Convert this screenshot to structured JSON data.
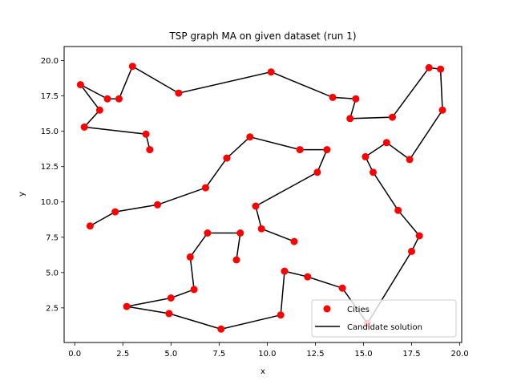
{
  "chart_data": {
    "type": "line",
    "title": "TSP graph MA on given dataset (run 1)",
    "xlabel": "x",
    "ylabel": "y",
    "xlim": [
      -0.55,
      20.1
    ],
    "ylim": [
      0.05,
      21.0
    ],
    "xticks": [
      0.0,
      2.5,
      5.0,
      7.5,
      10.0,
      12.5,
      15.0,
      17.5,
      20.0
    ],
    "yticks": [
      2.5,
      5.0,
      7.5,
      10.0,
      12.5,
      15.0,
      17.5,
      20.0
    ],
    "xtick_labels": [
      "0.0",
      "2.5",
      "5.0",
      "7.5",
      "10.0",
      "12.5",
      "15.0",
      "17.5",
      "20.0"
    ],
    "ytick_labels": [
      "2.5",
      "5.0",
      "7.5",
      "10.0",
      "12.5",
      "15.0",
      "17.5",
      "20.0"
    ],
    "grid": false,
    "legend_position": "lower-right",
    "series": [
      {
        "name": "Cities",
        "kind": "scatter",
        "color": "#ff0000",
        "points": [
          [
            15.2,
            1.4
          ],
          [
            17.5,
            6.5
          ],
          [
            17.9,
            7.6
          ],
          [
            16.8,
            9.4
          ],
          [
            15.5,
            12.1
          ],
          [
            15.1,
            13.2
          ],
          [
            16.2,
            14.2
          ],
          [
            17.4,
            13.0
          ],
          [
            19.1,
            16.5
          ],
          [
            19.0,
            19.4
          ],
          [
            18.4,
            19.5
          ],
          [
            16.5,
            16.0
          ],
          [
            14.3,
            15.9
          ],
          [
            14.6,
            17.3
          ],
          [
            13.4,
            17.4
          ],
          [
            10.2,
            19.2
          ],
          [
            5.4,
            17.7
          ],
          [
            3.0,
            19.6
          ],
          [
            2.3,
            17.3
          ],
          [
            1.7,
            17.3
          ],
          [
            0.3,
            18.3
          ],
          [
            1.3,
            16.5
          ],
          [
            0.5,
            15.3
          ],
          [
            3.7,
            14.8
          ],
          [
            3.9,
            13.7
          ],
          [
            7.9,
            13.1
          ],
          [
            9.1,
            14.6
          ],
          [
            11.7,
            13.7
          ],
          [
            13.1,
            13.7
          ],
          [
            12.6,
            12.1
          ],
          [
            9.4,
            9.7
          ],
          [
            9.7,
            8.1
          ],
          [
            11.4,
            7.2
          ],
          [
            8.6,
            7.8
          ],
          [
            6.9,
            7.8
          ],
          [
            6.0,
            6.1
          ],
          [
            6.2,
            3.8
          ],
          [
            5.0,
            3.2
          ],
          [
            2.7,
            2.6
          ],
          [
            4.9,
            2.1
          ],
          [
            7.6,
            1.0
          ],
          [
            10.7,
            2.0
          ],
          [
            10.9,
            5.1
          ],
          [
            12.1,
            4.7
          ],
          [
            13.9,
            3.9
          ],
          [
            8.4,
            5.9
          ],
          [
            0.8,
            8.3
          ],
          [
            2.1,
            9.3
          ],
          [
            4.3,
            9.8
          ],
          [
            6.8,
            11.0
          ]
        ]
      },
      {
        "name": "Candidate solution",
        "kind": "line",
        "color": "#000000",
        "points": [
          [
            15.2,
            1.4
          ],
          [
            17.5,
            6.5
          ],
          [
            17.9,
            7.6
          ],
          [
            16.8,
            9.4
          ],
          [
            15.5,
            12.1
          ],
          [
            15.1,
            13.2
          ],
          [
            16.2,
            14.2
          ],
          [
            17.4,
            13.0
          ],
          [
            19.1,
            16.5
          ],
          [
            19.0,
            19.4
          ],
          [
            18.4,
            19.5
          ],
          [
            16.5,
            16.0
          ],
          [
            14.3,
            15.9
          ],
          [
            14.6,
            17.3
          ],
          [
            13.4,
            17.4
          ],
          [
            10.2,
            19.2
          ],
          [
            5.4,
            17.7
          ],
          [
            3.0,
            19.6
          ],
          [
            2.3,
            17.3
          ],
          [
            1.7,
            17.3
          ],
          [
            0.3,
            18.3
          ],
          [
            1.3,
            16.5
          ],
          [
            0.5,
            15.3
          ],
          [
            3.7,
            14.8
          ],
          [
            3.9,
            13.7
          ]
        ]
      },
      {
        "name": "",
        "kind": "line",
        "color": "#000000",
        "points": [
          [
            0.8,
            8.3
          ],
          [
            2.1,
            9.3
          ],
          [
            4.3,
            9.8
          ],
          [
            6.8,
            11.0
          ],
          [
            7.9,
            13.1
          ],
          [
            9.1,
            14.6
          ],
          [
            11.7,
            13.7
          ],
          [
            13.1,
            13.7
          ],
          [
            12.6,
            12.1
          ],
          [
            9.4,
            9.7
          ],
          [
            9.7,
            8.1
          ],
          [
            11.4,
            7.2
          ]
        ]
      },
      {
        "name": "",
        "kind": "line",
        "color": "#000000",
        "points": [
          [
            8.4,
            5.9
          ],
          [
            8.6,
            7.8
          ],
          [
            6.9,
            7.8
          ],
          [
            6.0,
            6.1
          ],
          [
            6.2,
            3.8
          ],
          [
            5.0,
            3.2
          ],
          [
            2.7,
            2.6
          ],
          [
            4.9,
            2.1
          ],
          [
            7.6,
            1.0
          ],
          [
            10.7,
            2.0
          ],
          [
            10.9,
            5.1
          ],
          [
            12.1,
            4.7
          ],
          [
            13.9,
            3.9
          ],
          [
            15.2,
            1.4
          ]
        ]
      }
    ],
    "legend": [
      "Cities",
      "Candidate solution"
    ]
  }
}
